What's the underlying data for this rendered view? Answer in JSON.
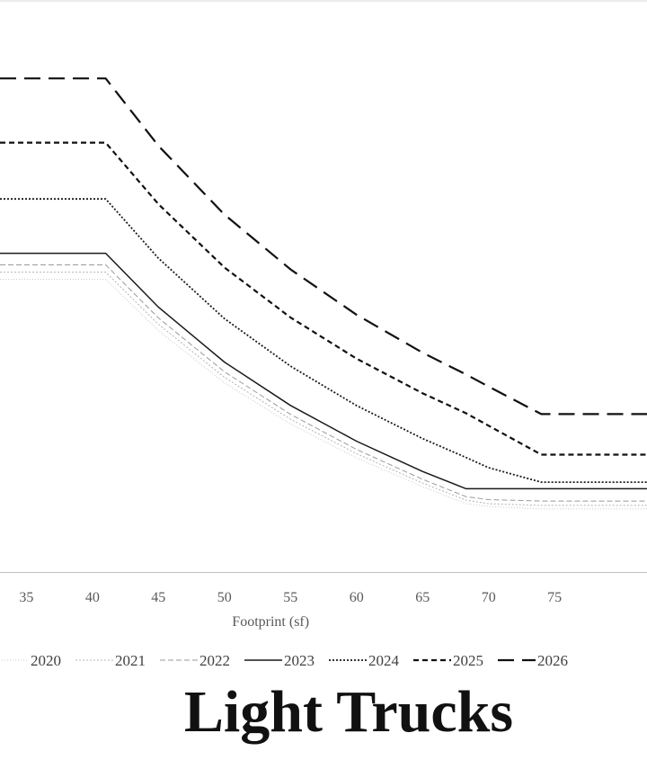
{
  "chart_data": {
    "type": "line",
    "title": "Light Trucks",
    "xlabel": "Footprint (sf)",
    "ylabel": "",
    "x_ticks": [
      "35",
      "40",
      "45",
      "50",
      "55",
      "60",
      "65",
      "70",
      "75"
    ],
    "xlim": [
      33,
      82
    ],
    "ylim": [
      150,
      520
    ],
    "grid": false,
    "legend_position": "bottom",
    "x": [
      33,
      41,
      45,
      50,
      55,
      60,
      65,
      68.3,
      70,
      74,
      75,
      82
    ],
    "series": [
      {
        "name": "2020",
        "color": "#c8c8c8",
        "dash": "1,2",
        "width": 1,
        "values": [
          352.0,
          352.0,
          316.6,
          280.6,
          252.2,
          228.8,
          208.9,
          197.2,
          195.3,
          193.5,
          193.5,
          193.5
        ]
      },
      {
        "name": "2021",
        "color": "#b4b4b4",
        "dash": "2,2",
        "width": 1,
        "values": [
          357.0,
          357.0,
          321.0,
          284.4,
          255.5,
          231.7,
          211.4,
          199.6,
          197.2,
          196.0,
          196.0,
          196.0
        ]
      },
      {
        "name": "2022",
        "color": "#9a9a9a",
        "dash": "6,3",
        "width": 1,
        "values": [
          362.0,
          362.0,
          325.4,
          288.2,
          258.8,
          234.6,
          214.0,
          202.0,
          200.0,
          199.0,
          199.0,
          199.0
        ]
      },
      {
        "name": "2023",
        "color": "#1a1a1a",
        "dash": "",
        "width": 1.5,
        "values": [
          370.0,
          370.0,
          332.8,
          294.9,
          265.0,
          240.3,
          219.4,
          207.5,
          207.5,
          207.5,
          207.5,
          207.5
        ]
      },
      {
        "name": "2024",
        "color": "#1a1a1a",
        "dash": "2,2",
        "width": 1.8,
        "values": [
          407.5,
          407.5,
          366.6,
          324.9,
          292.1,
          264.9,
          242.1,
          229.0,
          222.0,
          212.0,
          212.0,
          212.0
        ]
      },
      {
        "name": "2025",
        "color": "#111111",
        "dash": "6,4",
        "width": 2.2,
        "values": [
          446.4,
          446.4,
          403.9,
          360.2,
          325.7,
          297.3,
          273.4,
          259.6,
          251.0,
          231.0,
          231.0,
          231.0
        ]
      },
      {
        "name": "2026",
        "color": "#111111",
        "dash": "18,9",
        "width": 2.2,
        "values": [
          490.7,
          490.7,
          444.2,
          396.7,
          358.9,
          327.6,
          301.4,
          286.3,
          278.0,
          259.0,
          259.0,
          259.0
        ]
      }
    ]
  }
}
